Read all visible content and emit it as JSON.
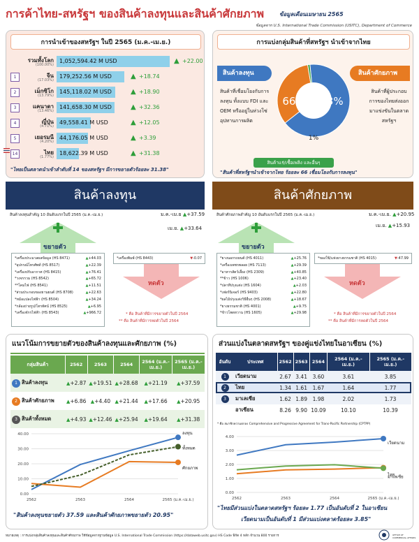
{
  "title": "การค้าไทย-สหรัฐฯ ของสินค้าลงทุนและสินค้าศักยภาพ",
  "title_note": "ข้อมูลเดือนเมษายน 2565",
  "source": "ข้อมูลจาก U.S. International Trade Commission (USITC), Department of Commerce",
  "imports": {
    "header": "การนำเข้าของสหรัฐฯ ในปี 2565 (ม.ค.-เม.ย.)",
    "rows": [
      {
        "rank": "",
        "name": "รวมทั้งโลก",
        "sub": "(100.00%)",
        "value": "1,052,594.42 M USD",
        "change": "+22.00",
        "pct": 100
      },
      {
        "rank": "1",
        "name": "จีน",
        "sub": "(17.03%)",
        "value": "179,252.56 M USD",
        "change": "+18.74",
        "pct": 60
      },
      {
        "rank": "2",
        "name": "เม็กซิโก",
        "sub": "(13.79%)",
        "value": "145,118.02 M USD",
        "change": "+18.90",
        "pct": 52
      },
      {
        "rank": "3",
        "name": "แคนาดา",
        "sub": "(13.46%)",
        "value": "141,658.30 M USD",
        "change": "+32.36",
        "pct": 51
      },
      {
        "rank": "4",
        "name": "ญี่ปุ่น",
        "sub": "(4.71%)",
        "value": "49,558.41 M USD",
        "change": "+12.05",
        "pct": 30
      },
      {
        "rank": "5",
        "name": "เยอรมนี",
        "sub": "(4.20%)",
        "value": "44,176.05 M USD",
        "change": "+3.39",
        "pct": 28
      },
      {
        "rank": "14",
        "name": "ไทย",
        "sub": "(1.77%)",
        "value": "18,622.39 M USD",
        "change": "+31.38",
        "pct": 20
      }
    ],
    "footer": "\"ไทยเป็นตลาดนำเข้าลำดับที่ 14 ของสหรัฐฯ มีการขยายตัวร้อยละ 31.38\""
  },
  "groups": {
    "header": "การแบ่งกลุ่มสินค้าที่สหรัฐฯ นำเข้าจากไทย",
    "investment_label": "สินค้าลงทุน",
    "investment_desc": "สินค้าที่เชื่อมโยงกับการลงทุน ทั้งแบบ FDI และ OEM หรืออยู่ในห่วงโซ่อุปทานการผลิต",
    "potential_label": "สินค้าศักยภาพ",
    "potential_desc": "สินค้าที่ผู้ประกอบการของไทยส่งออกมาแข่งขันในตลาดสหรัฐฯ",
    "pie": [
      {
        "label": "66%",
        "value": 66,
        "color": "#3f78c1"
      },
      {
        "label": "33%",
        "value": 33,
        "color": "#e77b22"
      },
      {
        "label": "1%",
        "value": 1,
        "color": "#3aa14a"
      }
    ],
    "other_label": "สินค้าแร่/เชื้อเพลิง และอื่นๆ",
    "footer": "\"สินค้าที่สหรัฐฯนำเข้าจากไทย ร้อยละ 66 เชื่อมโยงกับการลงทุน\""
  },
  "investment": {
    "banner": "สินค้าลงทุน",
    "subtitle": "สินค้าลงทุนสำคัญ 10 อันดับแรกในปี 2565 (ม.ค.-เม.ย.)",
    "ytd_label": "ม.ค.-เม.ย",
    "ytd_change": "+37.59",
    "apr_label": "เม.ย.",
    "apr_change": "+33.64",
    "expand_label": "ขยายตัว",
    "contract_label": "หดตัว",
    "expand_items": [
      {
        "text": "*เครื่องประมวลผลข้อมูล (HS 8471)",
        "chg": "+44.03"
      },
      {
        "text": "*อุปกรณ์โทรศัพท์ (HS 8517)",
        "chg": "+22.39"
      },
      {
        "text": "*เครื่องปรับอากาศ (HS 8415)",
        "chg": "+76.41"
      },
      {
        "text": "*วงจรรวม (HS 8542)",
        "chg": "+65.72"
      },
      {
        "text": "**โคมไฟ (HS 8541)",
        "chg": "+11.51"
      },
      {
        "text": "*ส่วนประกอบของยานยนต์ (HS 8708)",
        "chg": "+22.63"
      },
      {
        "text": "*หม้อแปลงไฟฟ้า (HS 8504)",
        "chg": "+34.24"
      },
      {
        "text": "*กล้องถ่ายรูป/โทรทัศน์ (HS 8525)",
        "chg": "+6.95"
      },
      {
        "text": "*เครื่องจักรไฟฟ้า (HS 8543)",
        "chg": "+966.72"
      }
    ],
    "contract_items": [
      {
        "text": "*เครื่องพิมพ์ (HS 8443)",
        "chg": "-0.07"
      }
    ],
    "note1": "* คือ สินค้าที่มีการขยายตัวในปี 2564",
    "note2": "** คือ สินค้าที่มีการหดตัวในปี 2564"
  },
  "potential": {
    "banner": "สินค้าศักยภาพ",
    "subtitle": "สินค้าศักยภาพสำคัญ 10 อันดับแรกในปี 2565 (ม.ค.-เม.ย.)",
    "ytd_label": "ม.ค.-เม.ย.",
    "ytd_change": "+20.95",
    "apr_label": "เม.ย.",
    "apr_change": "+15.93",
    "expand_label": "ขยายตัว",
    "contract_label": "หดตัว",
    "expand_items": [
      {
        "text": "*ยางนอกรถยนต์ (HS 4011)",
        "chg": "+25.76"
      },
      {
        "text": "*เครื่องเพชรพลอย (HS 7113)",
        "chg": "+29.39"
      },
      {
        "text": "*อาหารสัตว์เลี้ยง (HS 2309)",
        "chg": "+40.85"
      },
      {
        "text": "**ข้าว (HS 1006)",
        "chg": "+23.40"
      },
      {
        "text": "*ปลาทีปรุงแต่ง (HS 1604)",
        "chg": "+2.03"
      },
      {
        "text": "*เฟอร์นิเจอร์ (HS 9403)",
        "chg": "+22.80"
      },
      {
        "text": "*ผลไม้ปรุงแต่งวิธีอื่นๆ (HS 2008)",
        "chg": "+18.67"
      },
      {
        "text": "*ยางธรรมชาติ (HS 4001)",
        "chg": "+9.75"
      },
      {
        "text": "*ข้าวโพดหวาน (HS 1605)",
        "chg": "+29.98"
      }
    ],
    "contract_items": [
      {
        "text": "*ของใช้/แท่งยางธรรมชาติ (HS 4015)",
        "chg": "-47.99"
      }
    ],
    "note1": "* คือ สินค้าที่มีการขยายตัวในปี 2564",
    "note2": "** คือ สินค้าที่มีการหดตัวในปี 2564"
  },
  "trend": {
    "header": "แนวโน้มการขยายตัวของสินค้าลงทุนและศักยภาพ (%)",
    "col_group": "กลุ่มสินค้า",
    "cols": [
      "2562",
      "2563",
      "2564",
      "2564 (ม.ค.-เม.ย.)",
      "2565 (ม.ค.-เม.ย.)"
    ],
    "rows": [
      {
        "num": "1",
        "name": "สินค้าลงทุน",
        "vals": [
          "+2.87",
          "+19.51",
          "+28.68",
          "+21.19",
          "+37.59"
        ],
        "color": "#3f78c1"
      },
      {
        "num": "2",
        "name": "สินค้าศักยภาพ",
        "vals": [
          "+6.86",
          "+4.40",
          "+21.44",
          "+17.66",
          "+20.95"
        ],
        "color": "#e77b22"
      },
      {
        "num": "3",
        "name": "สินค้าทั้งหมด",
        "vals": [
          "+4.93",
          "+12.46",
          "+25.94",
          "+19.64",
          "+31.38"
        ],
        "color": "#555555"
      }
    ],
    "footer": "\"สินค้าลงทุนขยายตัว 37.59 และสินค้าศักยภาพขยายตัว 20.95\""
  },
  "asean": {
    "header": "ส่วนแบ่งในตลาดสหรัฐฯ ของคู่แข่งไทยในอาเซียน (%)",
    "col_rank": "อันดับ",
    "col_country": "ประเทศ",
    "cols": [
      "2562",
      "2563",
      "2564",
      "2564 (ม.ค.-เม.ย.)",
      "2565 (ม.ค.-เม.ย.)"
    ],
    "rows": [
      {
        "rank": "1",
        "country": "เวียดนาม",
        "vals": [
          "2.67",
          "3.41",
          "3.60",
          "3.61",
          "3.85"
        ]
      },
      {
        "rank": "2",
        "country": "ไทย",
        "vals": [
          "1.34",
          "1.61",
          "1.67",
          "1.64",
          "1.77"
        ]
      },
      {
        "rank": "3",
        "country": "มาเลเซีย",
        "vals": [
          "1.62",
          "1.89",
          "1.98",
          "2.02",
          "1.73"
        ]
      },
      {
        "rank": "",
        "country": "อาเซียน",
        "vals": [
          "8.26",
          "9.90",
          "10.09",
          "10.10",
          "10.39"
        ]
      }
    ],
    "note": "* คือ สมาชิกความตกลง Comprehensive and Progressive Agreement for Trans-Pacific Partnership (CPTPP)",
    "footer1": "\"ไทยมีส่วนแบ่งในตลาดสหรัฐฯ ร้อยละ 1.77 เป็นอันดับที่ 2 ในอาเซียน",
    "footer2": "เวียดนามเป็นอันดับที่ 1 มีส่วนแบ่งตลาดร้อยละ 3.85\""
  },
  "chart_data": [
    {
      "type": "line",
      "x": [
        "2562",
        "2563",
        "2564",
        "2565 (ม.ค.-เม.ย.)"
      ],
      "ylim": [
        0,
        40
      ],
      "yticks": [
        "0.00",
        "10.00",
        "20.00",
        "30.00",
        "40.00"
      ],
      "series": [
        {
          "name": "ลงทุน",
          "values": [
            2.87,
            19.51,
            28.68,
            37.59
          ],
          "color": "#3f78c1"
        },
        {
          "name": "ศักยภาพ",
          "values": [
            6.86,
            4.4,
            21.44,
            20.95
          ],
          "color": "#e77b22"
        },
        {
          "name": "ทั้งหมด",
          "values": [
            4.93,
            12.46,
            25.94,
            31.38
          ],
          "color": "#445e2a"
        }
      ]
    },
    {
      "type": "line",
      "x": [
        "2562",
        "2563",
        "2564",
        "2565 (ม.ค.-เม.ย.)"
      ],
      "ylim": [
        0,
        4
      ],
      "yticks": [
        "0.00",
        "1.00",
        "2.00",
        "3.00",
        "4.00"
      ],
      "series": [
        {
          "name": "เวียดนาม",
          "values": [
            2.67,
            3.41,
            3.6,
            3.85
          ],
          "color": "#3f78c1"
        },
        {
          "name": "ไทย",
          "values": [
            1.34,
            1.61,
            1.67,
            1.77
          ],
          "color": "#e77b22"
        },
        {
          "name": "มาเลเซีย",
          "values": [
            1.62,
            1.89,
            1.98,
            1.73
          ],
          "color": "#6aa84f"
        }
      ]
    }
  ],
  "footer_note": "หมายเหตุ : การแบ่งกลุ่มสินค้าลงทุนและสินค้าศักยภาพ ใช้ข้อมูลจากฐานข้อมูล U.S. International Trade Commission (https://dataweb.usitc.gov) HS Code พิกัด 4 หลัก จำนวน 800 รายการ",
  "logo_text": "OFFICE OF COMMERCIAL AFFAIRS"
}
